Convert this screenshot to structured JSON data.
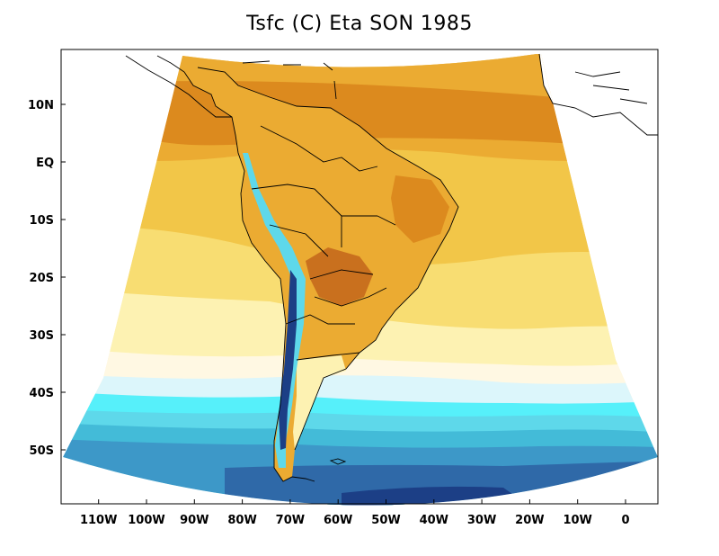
{
  "title": "Tsfc (C) Eta SON 1985",
  "colors": {
    "warm_dark": "#dc8a1e",
    "warm_mid": "#ebab32",
    "warm": "#f2c648",
    "warm_light": "#f8dd72",
    "pale": "#fdf2b2",
    "cream": "#fff8e3",
    "ice": "#dcf6fb",
    "cyan": "#56f0fa",
    "cyan_mid": "#5ed8ea",
    "teal": "#43bbd8",
    "blue": "#3d98c8",
    "navy": "#2f69a8",
    "deep": "#1c3f86",
    "land_hot": "#c9701e",
    "coast": "#000000"
  },
  "map": {
    "projection": "Lambert conformal (Eta model domain)",
    "variable": "Surface temperature (C)",
    "lon_ticks": [
      {
        "lon": -110,
        "label": "110W"
      },
      {
        "lon": -100,
        "label": "100W"
      },
      {
        "lon": -90,
        "label": "90W"
      },
      {
        "lon": -80,
        "label": "80W"
      },
      {
        "lon": -70,
        "label": "70W"
      },
      {
        "lon": -60,
        "label": "60W"
      },
      {
        "lon": -50,
        "label": "50W"
      },
      {
        "lon": -40,
        "label": "40W"
      },
      {
        "lon": -30,
        "label": "30W"
      },
      {
        "lon": -20,
        "label": "20W"
      },
      {
        "lon": -10,
        "label": "10W"
      },
      {
        "lon": 0,
        "label": "0"
      }
    ],
    "lat_ticks": [
      {
        "lat": 10,
        "label": "10N"
      },
      {
        "lat": 0,
        "label": "EQ"
      },
      {
        "lat": -10,
        "label": "10S"
      },
      {
        "lat": -20,
        "label": "20S"
      },
      {
        "lat": -30,
        "label": "30S"
      },
      {
        "lat": -40,
        "label": "40S"
      },
      {
        "lat": -50,
        "label": "50S"
      }
    ]
  }
}
